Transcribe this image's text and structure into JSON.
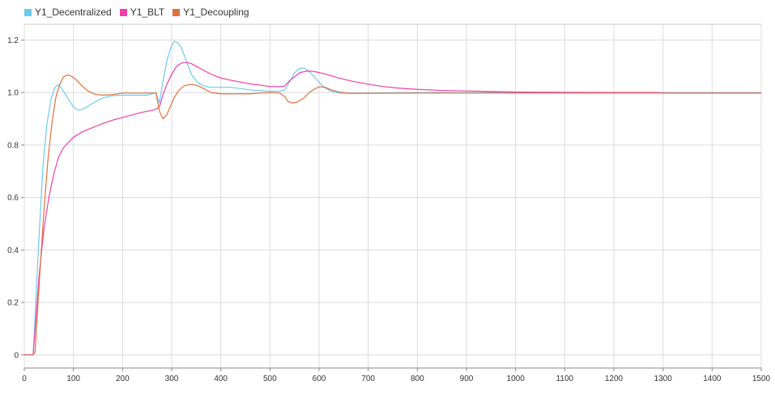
{
  "chart_data": {
    "type": "line",
    "xlim": [
      0,
      1500
    ],
    "ylim": [
      -0.05,
      1.26
    ],
    "x_ticks": [
      0,
      100,
      200,
      300,
      400,
      500,
      600,
      700,
      800,
      900,
      1000,
      1100,
      1200,
      1300,
      1400,
      1500
    ],
    "y_ticks": [
      0,
      0.2,
      0.4,
      0.6,
      0.8,
      1.0,
      1.2
    ],
    "y_tick_labels": [
      "0",
      "0.2",
      "0.4",
      "0.6",
      "0.8",
      "1.0",
      "1.2"
    ],
    "grid": true,
    "legend_position": "top-left",
    "series": [
      {
        "name": "Y1_Decentralized",
        "color": "#6ccbef",
        "points": [
          [
            0,
            0
          ],
          [
            18,
            0
          ],
          [
            22,
            0.15
          ],
          [
            30,
            0.45
          ],
          [
            38,
            0.72
          ],
          [
            46,
            0.88
          ],
          [
            55,
            0.98
          ],
          [
            62,
            1.02
          ],
          [
            70,
            1.03
          ],
          [
            78,
            1.01
          ],
          [
            88,
            0.98
          ],
          [
            100,
            0.945
          ],
          [
            110,
            0.932
          ],
          [
            120,
            0.937
          ],
          [
            140,
            0.96
          ],
          [
            160,
            0.98
          ],
          [
            180,
            0.988
          ],
          [
            200,
            0.99
          ],
          [
            220,
            0.99
          ],
          [
            250,
            0.99
          ],
          [
            268,
            1.0
          ],
          [
            275,
            0.96
          ],
          [
            282,
            1.04
          ],
          [
            290,
            1.12
          ],
          [
            298,
            1.17
          ],
          [
            305,
            1.195
          ],
          [
            312,
            1.19
          ],
          [
            320,
            1.17
          ],
          [
            330,
            1.12
          ],
          [
            340,
            1.07
          ],
          [
            352,
            1.04
          ],
          [
            365,
            1.025
          ],
          [
            380,
            1.02
          ],
          [
            420,
            1.02
          ],
          [
            460,
            1.01
          ],
          [
            500,
            1.005
          ],
          [
            520,
            1.005
          ],
          [
            530,
            1.01
          ],
          [
            540,
            1.04
          ],
          [
            550,
            1.075
          ],
          [
            560,
            1.092
          ],
          [
            570,
            1.093
          ],
          [
            580,
            1.08
          ],
          [
            590,
            1.06
          ],
          [
            600,
            1.04
          ],
          [
            610,
            1.02
          ],
          [
            625,
            1.005
          ],
          [
            640,
            0.998
          ],
          [
            660,
            0.997
          ],
          [
            700,
            0.998
          ],
          [
            800,
            1.0
          ],
          [
            900,
            1.0
          ],
          [
            1000,
            1.0
          ],
          [
            1500,
            1.0
          ]
        ]
      },
      {
        "name": "Y1_BLT",
        "color": "#f23fa8",
        "points": [
          [
            0,
            0
          ],
          [
            18,
            0
          ],
          [
            23,
            0.12
          ],
          [
            30,
            0.3
          ],
          [
            40,
            0.48
          ],
          [
            50,
            0.6
          ],
          [
            60,
            0.69
          ],
          [
            70,
            0.755
          ],
          [
            80,
            0.79
          ],
          [
            90,
            0.81
          ],
          [
            100,
            0.83
          ],
          [
            120,
            0.852
          ],
          [
            140,
            0.867
          ],
          [
            160,
            0.882
          ],
          [
            180,
            0.895
          ],
          [
            200,
            0.905
          ],
          [
            220,
            0.915
          ],
          [
            240,
            0.925
          ],
          [
            260,
            0.932
          ],
          [
            270,
            0.938
          ],
          [
            276,
            0.95
          ],
          [
            282,
            0.99
          ],
          [
            290,
            1.03
          ],
          [
            300,
            1.07
          ],
          [
            310,
            1.1
          ],
          [
            320,
            1.113
          ],
          [
            330,
            1.115
          ],
          [
            340,
            1.11
          ],
          [
            350,
            1.1
          ],
          [
            365,
            1.085
          ],
          [
            380,
            1.07
          ],
          [
            400,
            1.055
          ],
          [
            420,
            1.047
          ],
          [
            440,
            1.04
          ],
          [
            460,
            1.033
          ],
          [
            480,
            1.028
          ],
          [
            500,
            1.023
          ],
          [
            520,
            1.022
          ],
          [
            530,
            1.025
          ],
          [
            540,
            1.045
          ],
          [
            550,
            1.06
          ],
          [
            560,
            1.075
          ],
          [
            575,
            1.082
          ],
          [
            590,
            1.08
          ],
          [
            610,
            1.072
          ],
          [
            640,
            1.055
          ],
          [
            670,
            1.042
          ],
          [
            700,
            1.032
          ],
          [
            730,
            1.023
          ],
          [
            760,
            1.017
          ],
          [
            800,
            1.012
          ],
          [
            850,
            1.008
          ],
          [
            900,
            1.006
          ],
          [
            950,
            1.004
          ],
          [
            1000,
            1.002
          ],
          [
            1100,
            1.001
          ],
          [
            1200,
            1.0
          ],
          [
            1290,
            1.0
          ],
          [
            1300,
            0.998
          ],
          [
            1500,
            0.998
          ]
        ]
      },
      {
        "name": "Y1_Decoupling",
        "color": "#e07040",
        "points": [
          [
            0,
            0
          ],
          [
            18,
            0
          ],
          [
            22,
            0.01
          ],
          [
            26,
            0.14
          ],
          [
            32,
            0.32
          ],
          [
            40,
            0.55
          ],
          [
            48,
            0.74
          ],
          [
            56,
            0.88
          ],
          [
            64,
            0.98
          ],
          [
            72,
            1.03
          ],
          [
            80,
            1.06
          ],
          [
            88,
            1.067
          ],
          [
            96,
            1.062
          ],
          [
            105,
            1.05
          ],
          [
            115,
            1.03
          ],
          [
            130,
            1.005
          ],
          [
            145,
            0.993
          ],
          [
            160,
            0.99
          ],
          [
            180,
            0.992
          ],
          [
            200,
            0.998
          ],
          [
            220,
            0.998
          ],
          [
            250,
            0.998
          ],
          [
            268,
            0.998
          ],
          [
            275,
            0.93
          ],
          [
            282,
            0.9
          ],
          [
            290,
            0.915
          ],
          [
            298,
            0.95
          ],
          [
            305,
            0.98
          ],
          [
            315,
            1.01
          ],
          [
            325,
            1.025
          ],
          [
            335,
            1.03
          ],
          [
            345,
            1.03
          ],
          [
            355,
            1.025
          ],
          [
            365,
            1.015
          ],
          [
            380,
            1.0
          ],
          [
            400,
            0.995
          ],
          [
            420,
            0.995
          ],
          [
            460,
            0.995
          ],
          [
            480,
            0.998
          ],
          [
            500,
            1.0
          ],
          [
            520,
            0.998
          ],
          [
            530,
            0.985
          ],
          [
            537,
            0.965
          ],
          [
            545,
            0.96
          ],
          [
            555,
            0.963
          ],
          [
            570,
            0.98
          ],
          [
            580,
            1.0
          ],
          [
            592,
            1.015
          ],
          [
            602,
            1.022
          ],
          [
            612,
            1.02
          ],
          [
            625,
            1.01
          ],
          [
            640,
            1.002
          ],
          [
            660,
            0.997
          ],
          [
            700,
            0.997
          ],
          [
            800,
            0.998
          ],
          [
            1000,
            0.998
          ],
          [
            1500,
            0.998
          ]
        ]
      }
    ]
  }
}
